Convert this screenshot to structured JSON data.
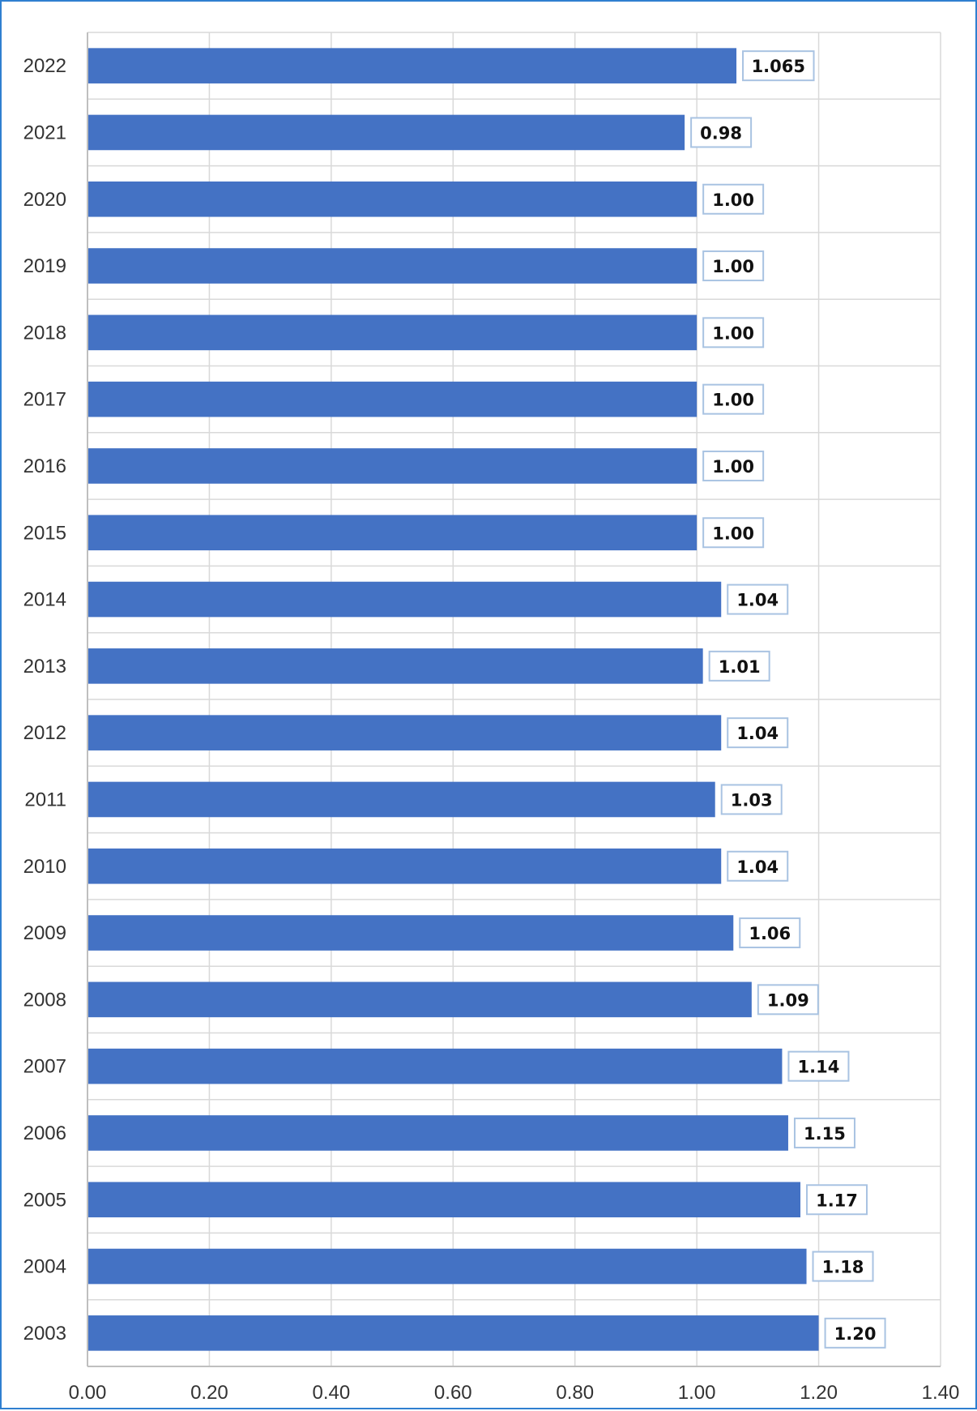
{
  "chart_data": {
    "type": "bar",
    "orientation": "horizontal",
    "title": "",
    "xlabel": "",
    "ylabel": "",
    "xlim": [
      0,
      1.4
    ],
    "x_ticks": [
      "0.00",
      "0.20",
      "0.40",
      "0.60",
      "0.80",
      "1.00",
      "1.20",
      "1.40"
    ],
    "grid": true,
    "legend": "none",
    "bar_color": "#4472c4",
    "label_border_color": "#a9c3e2",
    "categories": [
      "2022",
      "2021",
      "2020",
      "2019",
      "2018",
      "2017",
      "2016",
      "2015",
      "2014",
      "2013",
      "2012",
      "2011",
      "2010",
      "2009",
      "2008",
      "2007",
      "2006",
      "2005",
      "2004",
      "2003"
    ],
    "values": [
      1.065,
      0.98,
      1.0,
      1.0,
      1.0,
      1.0,
      1.0,
      1.0,
      1.04,
      1.01,
      1.04,
      1.03,
      1.04,
      1.06,
      1.09,
      1.14,
      1.15,
      1.17,
      1.18,
      1.2
    ],
    "data_labels": [
      "1.065",
      "0.98",
      "1.00",
      "1.00",
      "1.00",
      "1.00",
      "1.00",
      "1.00",
      "1.04",
      "1.01",
      "1.04",
      "1.03",
      "1.04",
      "1.06",
      "1.09",
      "1.14",
      "1.15",
      "1.17",
      "1.18",
      "1.20"
    ]
  }
}
